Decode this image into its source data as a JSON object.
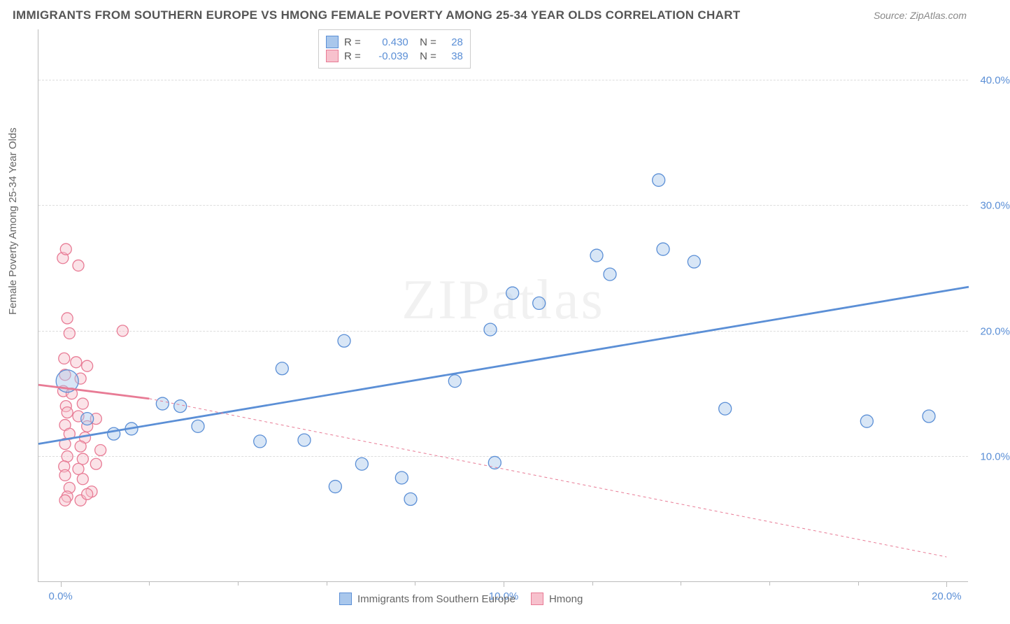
{
  "title": "IMMIGRANTS FROM SOUTHERN EUROPE VS HMONG FEMALE POVERTY AMONG 25-34 YEAR OLDS CORRELATION CHART",
  "source": "Source: ZipAtlas.com",
  "ylabel": "Female Poverty Among 25-34 Year Olds",
  "watermark": "ZIPatlas",
  "chart": {
    "type": "scatter",
    "xlim": [
      -0.5,
      20.5
    ],
    "ylim": [
      0,
      44
    ],
    "yticks": [
      10.0,
      20.0,
      30.0,
      40.0
    ],
    "ytick_labels": [
      "10.0%",
      "20.0%",
      "30.0%",
      "40.0%"
    ],
    "xticks": [
      0.0,
      10.0,
      20.0
    ],
    "xtick_labels": [
      "0.0%",
      "10.0%",
      "20.0%"
    ],
    "xtick_minors": [
      2,
      4,
      6,
      8,
      12,
      14,
      16,
      18
    ],
    "background_color": "#ffffff",
    "grid_color": "#dddddd",
    "axis_color": "#bbbbbb",
    "tick_label_color": "#5b8fd6",
    "series": [
      {
        "name": "Immigrants from Southern Europe",
        "color_fill": "#a9c7ec",
        "color_stroke": "#5b8fd6",
        "r_value": "0.430",
        "n_value": "28",
        "trend_solid": {
          "x1": -0.5,
          "y1": 11.0,
          "x2": 20.5,
          "y2": 23.5
        },
        "marker_radius": 9,
        "points": [
          {
            "x": 0.15,
            "y": 16.0,
            "r": 16
          },
          {
            "x": 0.6,
            "y": 13.0
          },
          {
            "x": 1.2,
            "y": 11.8
          },
          {
            "x": 1.6,
            "y": 12.2
          },
          {
            "x": 2.3,
            "y": 14.2
          },
          {
            "x": 2.7,
            "y": 14.0
          },
          {
            "x": 3.1,
            "y": 12.4
          },
          {
            "x": 4.5,
            "y": 11.2
          },
          {
            "x": 5.0,
            "y": 17.0
          },
          {
            "x": 5.5,
            "y": 11.3
          },
          {
            "x": 6.2,
            "y": 7.6
          },
          {
            "x": 6.4,
            "y": 19.2
          },
          {
            "x": 6.8,
            "y": 9.4
          },
          {
            "x": 7.7,
            "y": 8.3
          },
          {
            "x": 7.9,
            "y": 6.6
          },
          {
            "x": 8.9,
            "y": 16.0
          },
          {
            "x": 9.7,
            "y": 20.1
          },
          {
            "x": 9.8,
            "y": 9.5
          },
          {
            "x": 10.2,
            "y": 23.0
          },
          {
            "x": 10.8,
            "y": 22.2
          },
          {
            "x": 12.1,
            "y": 26.0
          },
          {
            "x": 12.4,
            "y": 24.5
          },
          {
            "x": 13.5,
            "y": 32.0
          },
          {
            "x": 13.6,
            "y": 26.5
          },
          {
            "x": 14.3,
            "y": 25.5
          },
          {
            "x": 15.0,
            "y": 13.8
          },
          {
            "x": 18.2,
            "y": 12.8
          },
          {
            "x": 19.6,
            "y": 13.2
          }
        ]
      },
      {
        "name": "Hmong",
        "color_fill": "#f7c1cd",
        "color_stroke": "#e87b95",
        "r_value": "-0.039",
        "n_value": "38",
        "trend_solid": {
          "x1": -0.5,
          "y1": 15.7,
          "x2": 2.0,
          "y2": 14.6
        },
        "trend_dash": {
          "x1": 2.0,
          "y1": 14.6,
          "x2": 20.0,
          "y2": 2.0
        },
        "marker_radius": 8,
        "points": [
          {
            "x": 0.05,
            "y": 25.8
          },
          {
            "x": 0.12,
            "y": 26.5
          },
          {
            "x": 0.4,
            "y": 25.2
          },
          {
            "x": 0.15,
            "y": 21.0
          },
          {
            "x": 0.2,
            "y": 19.8
          },
          {
            "x": 1.4,
            "y": 20.0
          },
          {
            "x": 0.08,
            "y": 17.8
          },
          {
            "x": 0.35,
            "y": 17.5
          },
          {
            "x": 0.6,
            "y": 17.2
          },
          {
            "x": 0.1,
            "y": 16.5
          },
          {
            "x": 0.45,
            "y": 16.2
          },
          {
            "x": 0.06,
            "y": 15.2
          },
          {
            "x": 0.25,
            "y": 15.0
          },
          {
            "x": 0.12,
            "y": 14.0
          },
          {
            "x": 0.5,
            "y": 14.2
          },
          {
            "x": 0.15,
            "y": 13.5
          },
          {
            "x": 0.4,
            "y": 13.2
          },
          {
            "x": 0.8,
            "y": 13.0
          },
          {
            "x": 0.1,
            "y": 12.5
          },
          {
            "x": 0.6,
            "y": 12.4
          },
          {
            "x": 0.2,
            "y": 11.8
          },
          {
            "x": 0.55,
            "y": 11.5
          },
          {
            "x": 0.1,
            "y": 11.0
          },
          {
            "x": 0.45,
            "y": 10.8
          },
          {
            "x": 0.9,
            "y": 10.5
          },
          {
            "x": 0.15,
            "y": 10.0
          },
          {
            "x": 0.5,
            "y": 9.8
          },
          {
            "x": 0.08,
            "y": 9.2
          },
          {
            "x": 0.4,
            "y": 9.0
          },
          {
            "x": 0.8,
            "y": 9.4
          },
          {
            "x": 0.1,
            "y": 8.5
          },
          {
            "x": 0.5,
            "y": 8.2
          },
          {
            "x": 0.2,
            "y": 7.5
          },
          {
            "x": 0.7,
            "y": 7.2
          },
          {
            "x": 0.15,
            "y": 6.8
          },
          {
            "x": 0.45,
            "y": 6.5
          },
          {
            "x": 0.1,
            "y": 6.5
          },
          {
            "x": 0.6,
            "y": 7.0
          }
        ]
      }
    ]
  }
}
